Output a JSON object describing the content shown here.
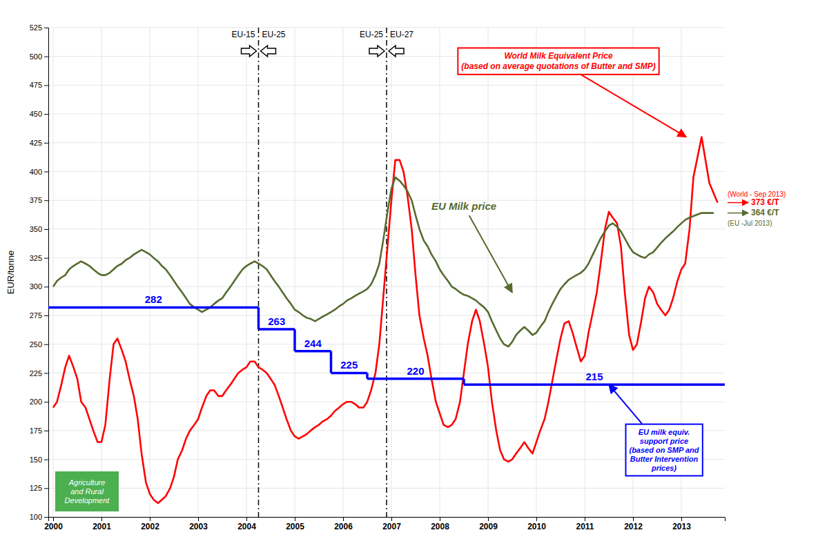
{
  "chart_data": {
    "type": "line",
    "ylabel": "EUR/tonne",
    "xlim": [
      1999.9,
      2013.9
    ],
    "ylim": [
      100,
      525
    ],
    "xticks": [
      2000,
      2001,
      2002,
      2003,
      2004,
      2005,
      2006,
      2007,
      2008,
      2009,
      2010,
      2011,
      2012,
      2013
    ],
    "yticks": [
      100,
      125,
      150,
      175,
      200,
      225,
      250,
      275,
      300,
      325,
      350,
      375,
      400,
      425,
      450,
      475,
      500,
      525
    ],
    "grid": true,
    "series": [
      {
        "type": "line",
        "color": "#ff0000",
        "x": [
          2000.0,
          2000.08,
          2000.17,
          2000.25,
          2000.33,
          2000.42,
          2000.5,
          2000.58,
          2000.67,
          2000.75,
          2000.83,
          2000.92,
          2001.0,
          2001.08,
          2001.17,
          2001.25,
          2001.33,
          2001.42,
          2001.5,
          2001.58,
          2001.67,
          2001.75,
          2001.83,
          2001.92,
          2002.0,
          2002.08,
          2002.17,
          2002.25,
          2002.33,
          2002.42,
          2002.5,
          2002.58,
          2002.67,
          2002.75,
          2002.83,
          2002.92,
          2003.0,
          2003.08,
          2003.17,
          2003.25,
          2003.33,
          2003.42,
          2003.5,
          2003.58,
          2003.67,
          2003.75,
          2003.83,
          2003.92,
          2004.0,
          2004.08,
          2004.17,
          2004.25,
          2004.33,
          2004.42,
          2004.5,
          2004.58,
          2004.67,
          2004.75,
          2004.83,
          2004.92,
          2005.0,
          2005.08,
          2005.17,
          2005.25,
          2005.33,
          2005.42,
          2005.5,
          2005.58,
          2005.67,
          2005.75,
          2005.83,
          2005.92,
          2006.0,
          2006.08,
          2006.17,
          2006.25,
          2006.33,
          2006.42,
          2006.5,
          2006.58,
          2006.67,
          2006.75,
          2006.83,
          2006.92,
          2007.0,
          2007.08,
          2007.17,
          2007.25,
          2007.33,
          2007.42,
          2007.5,
          2007.58,
          2007.67,
          2007.75,
          2007.83,
          2007.92,
          2008.0,
          2008.08,
          2008.17,
          2008.25,
          2008.33,
          2008.42,
          2008.5,
          2008.58,
          2008.67,
          2008.75,
          2008.83,
          2008.92,
          2009.0,
          2009.08,
          2009.17,
          2009.25,
          2009.33,
          2009.42,
          2009.5,
          2009.58,
          2009.67,
          2009.75,
          2009.83,
          2009.92,
          2010.0,
          2010.08,
          2010.17,
          2010.25,
          2010.33,
          2010.42,
          2010.5,
          2010.58,
          2010.67,
          2010.75,
          2010.83,
          2010.92,
          2011.0,
          2011.08,
          2011.17,
          2011.25,
          2011.33,
          2011.42,
          2011.5,
          2011.58,
          2011.67,
          2011.75,
          2011.83,
          2011.92,
          2012.0,
          2012.08,
          2012.17,
          2012.25,
          2012.33,
          2012.42,
          2012.5,
          2012.58,
          2012.67,
          2012.75,
          2012.83,
          2012.92,
          2013.0,
          2013.08,
          2013.17,
          2013.25,
          2013.42,
          2013.58,
          2013.75
        ],
        "values": [
          195,
          200,
          215,
          230,
          240,
          230,
          220,
          200,
          195,
          185,
          175,
          165,
          165,
          180,
          220,
          250,
          255,
          245,
          235,
          220,
          205,
          185,
          155,
          130,
          120,
          115,
          112,
          115,
          118,
          125,
          135,
          150,
          158,
          168,
          175,
          180,
          185,
          195,
          205,
          210,
          210,
          205,
          205,
          210,
          215,
          220,
          225,
          228,
          230,
          235,
          235,
          230,
          228,
          225,
          220,
          215,
          205,
          195,
          185,
          175,
          170,
          168,
          170,
          172,
          175,
          178,
          180,
          183,
          185,
          188,
          192,
          195,
          198,
          200,
          200,
          198,
          195,
          195,
          200,
          210,
          225,
          250,
          290,
          335,
          375,
          410,
          410,
          400,
          380,
          350,
          310,
          275,
          255,
          240,
          220,
          200,
          190,
          180,
          178,
          180,
          185,
          200,
          225,
          250,
          270,
          280,
          270,
          250,
          230,
          200,
          175,
          158,
          150,
          148,
          150,
          155,
          160,
          165,
          160,
          155,
          165,
          175,
          185,
          200,
          218,
          238,
          255,
          268,
          270,
          260,
          248,
          235,
          240,
          260,
          278,
          295,
          320,
          350,
          365,
          360,
          355,
          335,
          295,
          258,
          245,
          250,
          270,
          290,
          300,
          295,
          285,
          280,
          275,
          280,
          290,
          305,
          315,
          320,
          350,
          395,
          430,
          390,
          373
        ],
        "end_value": 373,
        "end_label": "373 €/T",
        "end_note": "(World - Sep 2013)"
      },
      {
        "type": "line",
        "color": "#556b2f",
        "x": [
          2000.0,
          2000.08,
          2000.17,
          2000.25,
          2000.33,
          2000.42,
          2000.5,
          2000.58,
          2000.67,
          2000.75,
          2000.83,
          2000.92,
          2001.0,
          2001.08,
          2001.17,
          2001.25,
          2001.33,
          2001.42,
          2001.5,
          2001.58,
          2001.67,
          2001.75,
          2001.83,
          2001.92,
          2002.0,
          2002.08,
          2002.17,
          2002.25,
          2002.33,
          2002.42,
          2002.5,
          2002.58,
          2002.67,
          2002.75,
          2002.83,
          2002.92,
          2003.0,
          2003.08,
          2003.17,
          2003.25,
          2003.33,
          2003.42,
          2003.5,
          2003.58,
          2003.67,
          2003.75,
          2003.83,
          2003.92,
          2004.0,
          2004.08,
          2004.17,
          2004.25,
          2004.33,
          2004.42,
          2004.5,
          2004.58,
          2004.67,
          2004.75,
          2004.83,
          2004.92,
          2005.0,
          2005.08,
          2005.17,
          2005.25,
          2005.33,
          2005.42,
          2005.5,
          2005.58,
          2005.67,
          2005.75,
          2005.83,
          2005.92,
          2006.0,
          2006.08,
          2006.17,
          2006.25,
          2006.33,
          2006.42,
          2006.5,
          2006.58,
          2006.67,
          2006.75,
          2006.83,
          2006.92,
          2007.0,
          2007.08,
          2007.17,
          2007.25,
          2007.33,
          2007.42,
          2007.5,
          2007.58,
          2007.67,
          2007.75,
          2007.83,
          2007.92,
          2008.0,
          2008.08,
          2008.17,
          2008.25,
          2008.33,
          2008.42,
          2008.5,
          2008.58,
          2008.67,
          2008.75,
          2008.83,
          2008.92,
          2009.0,
          2009.08,
          2009.17,
          2009.25,
          2009.33,
          2009.42,
          2009.5,
          2009.58,
          2009.67,
          2009.75,
          2009.83,
          2009.92,
          2010.0,
          2010.08,
          2010.17,
          2010.25,
          2010.33,
          2010.42,
          2010.5,
          2010.58,
          2010.67,
          2010.75,
          2010.83,
          2010.92,
          2011.0,
          2011.08,
          2011.17,
          2011.25,
          2011.33,
          2011.42,
          2011.5,
          2011.58,
          2011.67,
          2011.75,
          2011.83,
          2011.92,
          2012.0,
          2012.08,
          2012.17,
          2012.25,
          2012.33,
          2012.42,
          2012.5,
          2012.58,
          2012.67,
          2012.75,
          2012.83,
          2012.92,
          2013.0,
          2013.08,
          2013.17,
          2013.42,
          2013.67
        ],
        "values": [
          300,
          305,
          308,
          310,
          315,
          318,
          320,
          322,
          320,
          318,
          315,
          312,
          310,
          310,
          312,
          315,
          318,
          320,
          323,
          325,
          328,
          330,
          332,
          330,
          328,
          325,
          322,
          318,
          315,
          310,
          305,
          300,
          295,
          290,
          285,
          282,
          280,
          278,
          280,
          282,
          285,
          288,
          290,
          295,
          300,
          305,
          310,
          315,
          318,
          320,
          322,
          320,
          318,
          315,
          310,
          305,
          300,
          295,
          290,
          285,
          280,
          278,
          275,
          273,
          272,
          270,
          272,
          274,
          276,
          278,
          280,
          283,
          285,
          288,
          290,
          292,
          294,
          296,
          298,
          302,
          310,
          320,
          340,
          365,
          385,
          395,
          392,
          388,
          383,
          375,
          362,
          350,
          340,
          335,
          328,
          322,
          315,
          310,
          305,
          300,
          298,
          295,
          293,
          292,
          290,
          288,
          285,
          282,
          278,
          270,
          262,
          255,
          250,
          248,
          252,
          258,
          262,
          265,
          262,
          258,
          260,
          265,
          270,
          278,
          285,
          292,
          298,
          302,
          306,
          308,
          310,
          312,
          315,
          320,
          328,
          335,
          342,
          348,
          353,
          355,
          352,
          348,
          342,
          335,
          330,
          328,
          326,
          325,
          328,
          330,
          334,
          338,
          342,
          345,
          348,
          352,
          355,
          358,
          360,
          364,
          364
        ],
        "end_value": 364,
        "end_label": "364 €/T",
        "end_note": "(EU -Jul 2013)"
      },
      {
        "type": "step",
        "color": "#0000ff",
        "data_labels": true,
        "x_start": [
          1999.9,
          2004.25,
          2005.0,
          2005.75,
          2006.5,
          2008.5
        ],
        "x_end": [
          2004.25,
          2005.0,
          2005.75,
          2006.5,
          2008.5,
          2013.9
        ],
        "values": [
          282,
          263,
          244,
          225,
          220,
          215
        ]
      }
    ],
    "vlines": [
      {
        "x": 2004.25,
        "left_label": "EU-15",
        "right_label": "EU-25",
        "line_style": "dashdot"
      },
      {
        "x": 2006.9,
        "left_label": "EU-25",
        "right_label": "EU-27",
        "line_style": "dashdot"
      }
    ],
    "annotations": [
      {
        "text": "World Milk Equivalent Price\n(based on average quotations of Butter and SMP)",
        "x": 2013.1,
        "y": 430,
        "color": "#ff0000"
      },
      {
        "text": "EU Milk price",
        "x": 2009.5,
        "y": 295,
        "color": "#556b2f"
      },
      {
        "text": "EU milk equiv.\nsupport price\n(based on SMP and\nButter Intervention\nprices)",
        "x": 2011.5,
        "y": 215,
        "color": "#0000ff"
      }
    ],
    "logo": {
      "text": "Agriculture\nand Rural\nDevelopment",
      "color": "#4CAF50"
    }
  }
}
